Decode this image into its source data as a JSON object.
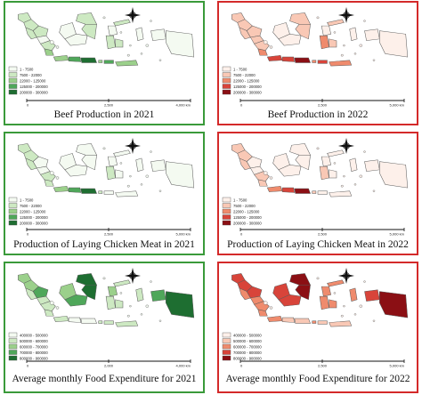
{
  "panels": [
    {
      "id": "beef-2021",
      "caption": "Beef Production in 2021",
      "scheme": "green",
      "legend": [
        "1 - 7500",
        "7500 - 22000",
        "22000 - 125000",
        "125000 - 200000",
        "200000 - 300000"
      ],
      "scale": {
        "zero": "0",
        "mid": "2,500",
        "end": "4,000 km"
      }
    },
    {
      "id": "beef-2022",
      "caption": "Beef Production in 2022",
      "scheme": "red",
      "legend": [
        "1 - 7500",
        "7500 - 22000",
        "22000 - 125000",
        "125000 - 200000",
        "200000 - 300000"
      ],
      "scale": {
        "zero": "0",
        "mid": "2,500",
        "end": "5,000 km"
      }
    },
    {
      "id": "chicken-2021",
      "caption": "Production of Laying Chicken Meat in 2021",
      "scheme": "green",
      "legend": [
        "1 - 7500",
        "7500 - 22000",
        "22000 - 125000",
        "125000 - 200000",
        "200000 - 300000"
      ],
      "scale": {
        "zero": "0",
        "mid": "2,500",
        "end": "5,000 km"
      }
    },
    {
      "id": "chicken-2022",
      "caption": "Production of Laying Chicken Meat in 2022",
      "scheme": "red",
      "legend": [
        "1 - 7500",
        "7500 - 22000",
        "22000 - 125000",
        "125000 - 200000",
        "200000 - 300000"
      ],
      "scale": {
        "zero": "0",
        "mid": "2,500",
        "end": "5,000 km"
      }
    },
    {
      "id": "food-2021",
      "caption": "Average monthly Food Expenditure for 2021",
      "scheme": "green",
      "legend": [
        "400000 - 500000",
        "500000 - 600000",
        "600000 - 700000",
        "700000 - 800000",
        "800000 - 900000"
      ],
      "scale": {
        "zero": "0",
        "mid": "2,000",
        "end": "4,000 km"
      }
    },
    {
      "id": "food-2022",
      "caption": "Average monthly Food Expenditure for 2022",
      "scheme": "red",
      "legend": [
        "400000 - 500000",
        "500000 - 600000",
        "600000 - 700000",
        "700000 - 800000",
        "800000 - 900000"
      ],
      "scale": {
        "zero": "0",
        "mid": "2,500",
        "end": "5,000 km"
      }
    }
  ],
  "colors": {
    "green_ramp": [
      "#f4faf1",
      "#cde9c2",
      "#9bd08b",
      "#4fa75a",
      "#1e6e31"
    ],
    "red_ramp": [
      "#fdf0ea",
      "#f9c8b5",
      "#ef8b6d",
      "#d8443a",
      "#8b0f14"
    ],
    "frame_green": "#3a9a3a",
    "frame_red": "#d42a2a"
  },
  "class_levels": {
    "beef-2021": {
      "aceh": 1,
      "sumut": 1,
      "sumbar": 1,
      "riau": 1,
      "jambi": 0,
      "sumsel": 1,
      "lampung": 2,
      "javaW": 2,
      "javaC": 3,
      "javaE": 4,
      "bali": 2,
      "ntb": 3,
      "ntt": 2,
      "kalW": 0,
      "kalC": 0,
      "kalE": 1,
      "kalN": 1,
      "sulN": 1,
      "sulC": 0,
      "sulS": 1,
      "sulSE": 1,
      "maluku": 0,
      "papuaW": 0,
      "papua": 0
    },
    "beef-2022": {
      "aceh": 1,
      "sumut": 1,
      "sumbar": 1,
      "riau": 1,
      "jambi": 1,
      "sumsel": 1,
      "lampung": 2,
      "javaW": 3,
      "javaC": 3,
      "javaE": 4,
      "bali": 2,
      "ntb": 3,
      "ntt": 2,
      "kalW": 0,
      "kalC": 0,
      "kalE": 1,
      "kalN": 1,
      "sulN": 1,
      "sulC": 0,
      "sulS": 2,
      "sulSE": 1,
      "maluku": 0,
      "papuaW": 0,
      "papua": 0
    },
    "chicken-2021": {
      "aceh": 1,
      "sumut": 1,
      "sumbar": 1,
      "riau": 0,
      "jambi": 0,
      "sumsel": 1,
      "lampung": 1,
      "javaW": 2,
      "javaC": 3,
      "javaE": 4,
      "bali": 1,
      "ntb": 0,
      "ntt": 0,
      "kalW": 0,
      "kalC": 0,
      "kalE": 0,
      "kalN": 0,
      "sulN": 0,
      "sulC": 0,
      "sulS": 1,
      "sulSE": 0,
      "maluku": 0,
      "papuaW": 0,
      "papua": 0
    },
    "chicken-2022": {
      "aceh": 1,
      "sumut": 1,
      "sumbar": 1,
      "riau": 0,
      "jambi": 0,
      "sumsel": 1,
      "lampung": 1,
      "javaW": 2,
      "javaC": 3,
      "javaE": 4,
      "bali": 1,
      "ntb": 0,
      "ntt": 0,
      "kalW": 0,
      "kalC": 0,
      "kalE": 0,
      "kalN": 0,
      "sulN": 0,
      "sulC": 0,
      "sulS": 1,
      "sulSE": 0,
      "maluku": 0,
      "papuaW": 0,
      "papua": 0
    },
    "food-2021": {
      "aceh": 2,
      "sumut": 2,
      "sumbar": 1,
      "riau": 3,
      "jambi": 1,
      "sumsel": 1,
      "lampung": 1,
      "javaW": 1,
      "javaC": 0,
      "javaE": 0,
      "bali": 1,
      "ntb": 1,
      "ntt": 1,
      "kalW": 2,
      "kalC": 3,
      "kalE": 4,
      "kalN": 4,
      "sulN": 1,
      "sulC": 2,
      "sulS": 1,
      "sulSE": 1,
      "maluku": 1,
      "papuaW": 3,
      "papua": 4
    },
    "food-2022": {
      "aceh": 3,
      "sumut": 3,
      "sumbar": 2,
      "riau": 3,
      "jambi": 2,
      "sumsel": 2,
      "lampung": 2,
      "javaW": 2,
      "javaC": 1,
      "javaE": 1,
      "bali": 2,
      "ntb": 1,
      "ntt": 1,
      "kalW": 3,
      "kalC": 3,
      "kalE": 4,
      "kalN": 4,
      "sulN": 2,
      "sulC": 2,
      "sulS": 2,
      "sulSE": 2,
      "maluku": 2,
      "papuaW": 3,
      "papua": 4
    }
  }
}
